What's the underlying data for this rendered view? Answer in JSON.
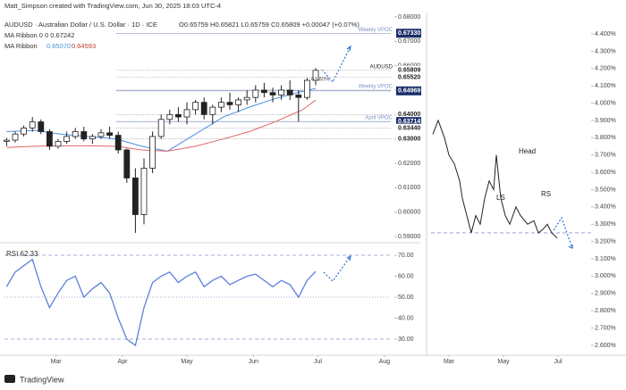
{
  "header": {
    "credit": "Matt_Simpson created with TradingView.com, Jun 30, 2025 18:03 UTC-4",
    "symbol": "AUDUSD · Australian Dollar / U.S. Dollar · 1D · ICE",
    "ohlc": "O0.65759 H0.65821 L0.65759 C0.65809 +0.00047 (+0.07%)",
    "ribbon1": "MA Ribbon  0  0  0.67242",
    "ribbon2_name": "MA Ribbon",
    "ribbon2_fast": "0.65070",
    "ribbon2_slow": "0.64593"
  },
  "footer": {
    "brand": "TradingView"
  },
  "chart_data": [
    {
      "type": "candlestick",
      "up_color": "#ffffff",
      "down_color": "#222222",
      "wick_color": "#222222",
      "x": [
        37,
        41,
        45,
        49,
        53,
        57,
        61,
        65,
        69,
        73,
        77,
        81,
        85,
        89,
        93,
        97,
        101,
        105,
        109,
        113,
        117,
        121,
        125,
        129,
        133,
        137,
        141,
        145,
        149,
        153,
        157,
        161,
        165,
        169,
        173,
        177,
        181
      ],
      "ohlc": [
        [
          0.629,
          0.6305,
          0.627,
          0.6295
        ],
        [
          0.6295,
          0.633,
          0.6285,
          0.632
        ],
        [
          0.632,
          0.6355,
          0.631,
          0.6345
        ],
        [
          0.6345,
          0.639,
          0.633,
          0.637
        ],
        [
          0.637,
          0.638,
          0.632,
          0.633
        ],
        [
          0.633,
          0.634,
          0.6255,
          0.627
        ],
        [
          0.627,
          0.63,
          0.626,
          0.629
        ],
        [
          0.629,
          0.633,
          0.628,
          0.631
        ],
        [
          0.631,
          0.6345,
          0.63,
          0.633
        ],
        [
          0.633,
          0.635,
          0.629,
          0.63
        ],
        [
          0.63,
          0.632,
          0.628,
          0.631
        ],
        [
          0.631,
          0.634,
          0.63,
          0.6325
        ],
        [
          0.6325,
          0.635,
          0.63,
          0.6315
        ],
        [
          0.6315,
          0.633,
          0.624,
          0.6255
        ],
        [
          0.6255,
          0.626,
          0.612,
          0.614
        ],
        [
          0.614,
          0.618,
          0.5915,
          0.599
        ],
        [
          0.599,
          0.622,
          0.595,
          0.618
        ],
        [
          0.618,
          0.633,
          0.616,
          0.631
        ],
        [
          0.631,
          0.64,
          0.63,
          0.638
        ],
        [
          0.638,
          0.642,
          0.636,
          0.64
        ],
        [
          0.64,
          0.643,
          0.637,
          0.639
        ],
        [
          0.639,
          0.645,
          0.636,
          0.642
        ],
        [
          0.642,
          0.646,
          0.64,
          0.645
        ],
        [
          0.645,
          0.647,
          0.638,
          0.64
        ],
        [
          0.64,
          0.644,
          0.636,
          0.643
        ],
        [
          0.643,
          0.647,
          0.641,
          0.645
        ],
        [
          0.645,
          0.649,
          0.642,
          0.644
        ],
        [
          0.644,
          0.647,
          0.641,
          0.646
        ],
        [
          0.646,
          0.65,
          0.644,
          0.647
        ],
        [
          0.647,
          0.652,
          0.645,
          0.65
        ],
        [
          0.65,
          0.653,
          0.647,
          0.649
        ],
        [
          0.649,
          0.651,
          0.645,
          0.648
        ],
        [
          0.648,
          0.652,
          0.646,
          0.65
        ],
        [
          0.65,
          0.654,
          0.646,
          0.648
        ],
        [
          0.648,
          0.65,
          0.637,
          0.647
        ],
        [
          0.647,
          0.655,
          0.646,
          0.654
        ],
        [
          0.654,
          0.659,
          0.652,
          0.6581
        ]
      ],
      "lines": [
        {
          "color": "#4a8fe0",
          "x": [
            37,
            50,
            62,
            75,
            88,
            100,
            112,
            125,
            138,
            150,
            162,
            175,
            181
          ],
          "values": [
            0.633,
            0.6335,
            0.632,
            0.631,
            0.63,
            0.627,
            0.625,
            0.632,
            0.639,
            0.643,
            0.6465,
            0.6495,
            0.6507
          ]
        },
        {
          "color": "#e06666",
          "x": [
            37,
            50,
            62,
            75,
            88,
            100,
            112,
            125,
            138,
            150,
            162,
            175,
            181
          ],
          "values": [
            0.6265,
            0.627,
            0.6272,
            0.6272,
            0.627,
            0.6255,
            0.625,
            0.627,
            0.63,
            0.633,
            0.637,
            0.642,
            0.6459
          ]
        }
      ],
      "xlim": [
        36,
        216
      ],
      "ylim": [
        0.5882,
        0.6818
      ],
      "yticks": [
        {
          "value": 0.59,
          "label": "0.59000"
        },
        {
          "value": 0.6,
          "label": "0.60000"
        },
        {
          "value": 0.61,
          "label": "0.61000"
        },
        {
          "value": 0.62,
          "label": "0.62000"
        },
        {
          "value": 0.63,
          "label": "0.63000"
        },
        {
          "value": 0.64,
          "label": "0.64000"
        },
        {
          "value": 0.65,
          "label": "0.65000"
        },
        {
          "value": 0.66,
          "label": "0.66000"
        },
        {
          "value": 0.67,
          "label": "0.67000"
        },
        {
          "value": 0.68,
          "label": "0.68000"
        }
      ],
      "levels": [
        {
          "value": 0.6733,
          "label": "0.67330",
          "text": "Weekly VPOC",
          "color": "#1a2f6b"
        },
        {
          "value": 0.65809,
          "label": "0.65809",
          "text": "AUDUSD",
          "color": "#ffffff"
        },
        {
          "value": 0.6552,
          "label": "0.65520",
          "color": "#ffffff"
        },
        {
          "value": 0.65,
          "label": "0.65000",
          "text": "Weekly VPOC",
          "color": "#ffffff"
        },
        {
          "value": 0.64969,
          "label": "0.64969",
          "color": "#1a2f6b"
        },
        {
          "value": 0.64,
          "label": "0.64000",
          "color": "#ffffff"
        },
        {
          "value": 0.63714,
          "label": "0.63714",
          "text": "April VPOC",
          "color": "#1a2f6b"
        },
        {
          "value": 0.6344,
          "label": "0.63440",
          "color": "#ffffff"
        },
        {
          "value": 0.63,
          "label": "0.63000",
          "color": "#ffffff"
        }
      ],
      "annotations": [
        "63.80%"
      ]
    },
    {
      "type": "line",
      "title": "RSI  62.33",
      "series": [
        {
          "color": "#5b7fde",
          "values": [
            55,
            62,
            65,
            68,
            55,
            45,
            52,
            58,
            60,
            50,
            54,
            57,
            52,
            40,
            30,
            27,
            45,
            57,
            60,
            62,
            57,
            60,
            62,
            55,
            58,
            60,
            56,
            58,
            60,
            61,
            58,
            55,
            58,
            56,
            50,
            58,
            62.33
          ]
        }
      ],
      "x": [
        37,
        41,
        45,
        49,
        53,
        57,
        61,
        65,
        69,
        73,
        77,
        81,
        85,
        89,
        93,
        97,
        101,
        105,
        109,
        113,
        117,
        121,
        125,
        129,
        133,
        137,
        141,
        145,
        149,
        153,
        157,
        161,
        165,
        169,
        173,
        177,
        181
      ],
      "xlim": [
        36,
        216
      ],
      "xticks": [
        {
          "value": 60,
          "label": "Mar"
        },
        {
          "value": 91,
          "label": "Apr"
        },
        {
          "value": 121,
          "label": "May"
        },
        {
          "value": 152,
          "label": "Jun"
        },
        {
          "value": 182,
          "label": "Jul"
        },
        {
          "value": 213,
          "label": "Aug"
        }
      ],
      "ylim": [
        23.6,
        74.7
      ],
      "yticks": [
        {
          "value": 30,
          "label": "30.00"
        },
        {
          "value": 40,
          "label": "40.00"
        },
        {
          "value": 50,
          "label": "50.00"
        },
        {
          "value": 60,
          "label": "60.00"
        },
        {
          "value": 70,
          "label": "70.00"
        }
      ],
      "hlines": [
        70,
        50,
        30
      ]
    },
    {
      "type": "line",
      "series": [
        {
          "color": "#222222",
          "values": [
            3.82,
            3.9,
            3.8,
            3.7,
            3.65,
            3.55,
            3.45,
            3.35,
            3.25,
            3.35,
            3.3,
            3.45,
            3.55,
            3.5,
            3.7,
            3.45,
            3.35,
            3.3,
            3.4,
            3.35,
            3.3,
            3.32,
            3.25,
            3.27,
            3.3,
            3.25,
            3.22
          ]
        }
      ],
      "x": [
        42,
        48,
        55,
        60,
        66,
        72,
        75,
        80,
        85,
        90,
        95,
        100,
        105,
        110,
        113,
        118,
        123,
        128,
        135,
        140,
        148,
        155,
        160,
        165,
        170,
        175,
        181
      ],
      "xlim": [
        40,
        220
      ],
      "xticks": [
        {
          "value": 60,
          "label": "Mar"
        },
        {
          "value": 121,
          "label": "May"
        },
        {
          "value": 182,
          "label": "Jul"
        }
      ],
      "ylim": [
        2.548,
        4.524
      ],
      "yticks": [
        {
          "value": 2.6,
          "label": "2.600%"
        },
        {
          "value": 2.7,
          "label": "2.700%"
        },
        {
          "value": 2.8,
          "label": "2.800%"
        },
        {
          "value": 2.9,
          "label": "2.900%"
        },
        {
          "value": 3.0,
          "label": "3.000%"
        },
        {
          "value": 3.1,
          "label": "3.100%"
        },
        {
          "value": 3.2,
          "label": "3.200%"
        },
        {
          "value": 3.3,
          "label": "3.300%"
        },
        {
          "value": 3.4,
          "label": "3.400%"
        },
        {
          "value": 3.5,
          "label": "3.500%"
        },
        {
          "value": 3.6,
          "label": "3.600%"
        },
        {
          "value": 3.7,
          "label": "3.700%"
        },
        {
          "value": 3.8,
          "label": "3.800%"
        },
        {
          "value": 3.9,
          "label": "3.900%"
        },
        {
          "value": 4.0,
          "label": "4.000%"
        },
        {
          "value": 4.1,
          "label": "4.100%"
        },
        {
          "value": 4.2,
          "label": "4.200%"
        },
        {
          "value": 4.3,
          "label": "4.300%"
        },
        {
          "value": 4.4,
          "label": "4.400%"
        }
      ],
      "hlines": [
        3.25
      ],
      "annotations": [
        "Head",
        "LS",
        "RS"
      ]
    }
  ]
}
